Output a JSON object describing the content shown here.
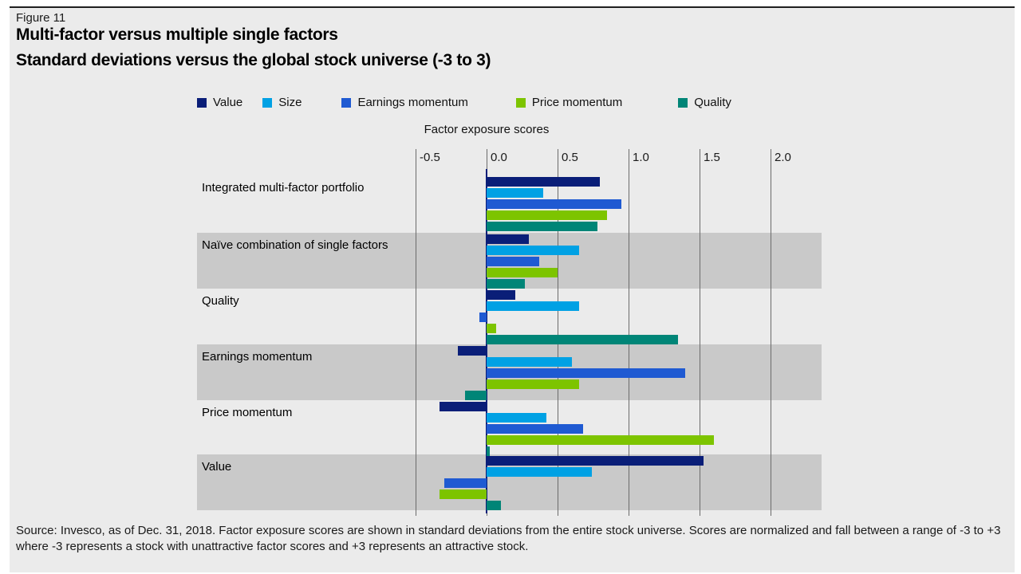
{
  "figure_label": "Figure 11",
  "title_line1": "Multi-factor versus multiple single factors",
  "title_line2": "Standard deviations versus the global stock universe (-3 to 3)",
  "axis_title": "Factor exposure scores",
  "source_text": "Source: Invesco, as of Dec. 31, 2018. Factor exposure scores are shown in standard deviations from the entire stock universe. Scores are normalized and fall between a range of -3 to +3 where -3 represents a stock with unattractive factor scores and +3 represents an attractive stock.",
  "colors": {
    "panel_background": "#ebebeb",
    "row_band": "#c9c9c9",
    "gridline": "#6b6b6b",
    "zero_line": "#0a1e78",
    "value": "#0a1e78",
    "size": "#00a1e4",
    "earnings_momentum": "#1f5ad2",
    "price_momentum": "#7dc400",
    "quality": "#008577"
  },
  "chart_data": {
    "type": "bar",
    "orientation": "horizontal",
    "title": "Multi-factor versus multiple single factors",
    "subtitle": "Standard deviations versus the global stock universe (-3 to 3)",
    "xlabel": "Factor exposure scores",
    "ylabel": "",
    "xlim": [
      -0.75,
      2.35
    ],
    "ticks": [
      -0.5,
      0.0,
      0.5,
      1.0,
      1.5,
      2.0
    ],
    "tick_labels": [
      "-0.5",
      "0.0",
      "0.5",
      "1.0",
      "1.5",
      "2.0"
    ],
    "grid": true,
    "legend_position": "top",
    "categories": [
      "Integrated multi-factor portfolio",
      "Naïve combination of single factors",
      "Quality",
      "Earnings momentum",
      "Price momentum",
      "Value"
    ],
    "banded_row_indices": [
      1,
      3,
      5
    ],
    "series": [
      {
        "name": "Value",
        "color": "#0a1e78",
        "values": [
          0.8,
          0.3,
          0.2,
          -0.2,
          -0.33,
          1.53
        ]
      },
      {
        "name": "Size",
        "color": "#00a1e4",
        "values": [
          0.4,
          0.65,
          0.65,
          0.6,
          0.42,
          0.74
        ]
      },
      {
        "name": "Earnings momentum",
        "color": "#1f5ad2",
        "values": [
          0.95,
          0.37,
          -0.05,
          1.4,
          0.68,
          -0.3
        ]
      },
      {
        "name": "Price momentum",
        "color": "#7dc400",
        "values": [
          0.85,
          0.5,
          0.07,
          0.65,
          1.6,
          -0.33
        ]
      },
      {
        "name": "Quality",
        "color": "#008577",
        "values": [
          0.78,
          0.27,
          1.35,
          -0.15,
          0.02,
          0.1
        ]
      }
    ]
  }
}
